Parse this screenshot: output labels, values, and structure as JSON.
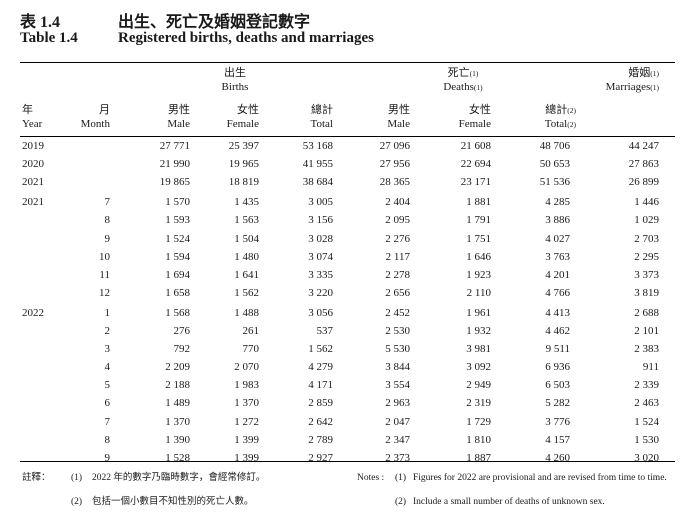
{
  "title": {
    "zh_number": "表 1.4",
    "zh_text": "出生、死亡及婚姻登記數字",
    "en_number": "Table 1.4",
    "en_text": "Registered births, deaths and marriages"
  },
  "groups": {
    "births_zh": "出生",
    "births_en": "Births",
    "deaths_zh": "死亡",
    "deaths_en": "Deaths",
    "deaths_note": "(1)",
    "marriages_zh": "婚姻",
    "marriages_en": "Marriages",
    "marriages_note": "(1)"
  },
  "columns": {
    "year_zh": "年",
    "year_en": "Year",
    "month_zh": "月",
    "month_en": "Month",
    "male_zh": "男性",
    "male_en": "Male",
    "female_zh": "女性",
    "female_en": "Female",
    "total_zh": "總計",
    "total_en": "Total",
    "total_note": "(2)"
  },
  "rows": [
    {
      "year": "2019",
      "month": "",
      "b_male": "27 771",
      "b_female": "25 397",
      "b_total": "53 168",
      "d_male": "27 096",
      "d_female": "21 608",
      "d_total": "48 706",
      "marriages": "44 247"
    },
    {
      "year": "2020",
      "month": "",
      "b_male": "21 990",
      "b_female": "19 965",
      "b_total": "41 955",
      "d_male": "27 956",
      "d_female": "22 694",
      "d_total": "50 653",
      "marriages": "27 863"
    },
    {
      "year": "2021",
      "month": "",
      "b_male": "19 865",
      "b_female": "18 819",
      "b_total": "38 684",
      "d_male": "28 365",
      "d_female": "23 171",
      "d_total": "51 536",
      "marriages": "26 899"
    },
    {
      "year": "2021",
      "month": "7",
      "b_male": "1 570",
      "b_female": "1 435",
      "b_total": "3 005",
      "d_male": "2 404",
      "d_female": "1 881",
      "d_total": "4 285",
      "marriages": "1 446"
    },
    {
      "year": "",
      "month": "8",
      "b_male": "1 593",
      "b_female": "1 563",
      "b_total": "3 156",
      "d_male": "2 095",
      "d_female": "1 791",
      "d_total": "3 886",
      "marriages": "1 029"
    },
    {
      "year": "",
      "month": "9",
      "b_male": "1 524",
      "b_female": "1 504",
      "b_total": "3 028",
      "d_male": "2 276",
      "d_female": "1 751",
      "d_total": "4 027",
      "marriages": "2 703"
    },
    {
      "year": "",
      "month": "10",
      "b_male": "1 594",
      "b_female": "1 480",
      "b_total": "3 074",
      "d_male": "2 117",
      "d_female": "1 646",
      "d_total": "3 763",
      "marriages": "2 295"
    },
    {
      "year": "",
      "month": "11",
      "b_male": "1 694",
      "b_female": "1 641",
      "b_total": "3 335",
      "d_male": "2 278",
      "d_female": "1 923",
      "d_total": "4 201",
      "marriages": "3 373"
    },
    {
      "year": "",
      "month": "12",
      "b_male": "1 658",
      "b_female": "1 562",
      "b_total": "3 220",
      "d_male": "2 656",
      "d_female": "2 110",
      "d_total": "4 766",
      "marriages": "3 819"
    },
    {
      "year": "2022",
      "month": "1",
      "b_male": "1 568",
      "b_female": "1 488",
      "b_total": "3 056",
      "d_male": "2 452",
      "d_female": "1 961",
      "d_total": "4 413",
      "marriages": "2 688"
    },
    {
      "year": "",
      "month": "2",
      "b_male": "276",
      "b_female": "261",
      "b_total": "537",
      "d_male": "2 530",
      "d_female": "1 932",
      "d_total": "4 462",
      "marriages": "2 101"
    },
    {
      "year": "",
      "month": "3",
      "b_male": "792",
      "b_female": "770",
      "b_total": "1 562",
      "d_male": "5 530",
      "d_female": "3 981",
      "d_total": "9 511",
      "marriages": "2 383"
    },
    {
      "year": "",
      "month": "4",
      "b_male": "2 209",
      "b_female": "2 070",
      "b_total": "4 279",
      "d_male": "3 844",
      "d_female": "3 092",
      "d_total": "6 936",
      "marriages": "911"
    },
    {
      "year": "",
      "month": "5",
      "b_male": "2 188",
      "b_female": "1 983",
      "b_total": "4 171",
      "d_male": "3 554",
      "d_female": "2 949",
      "d_total": "6 503",
      "marriages": "2 339"
    },
    {
      "year": "",
      "month": "6",
      "b_male": "1 489",
      "b_female": "1 370",
      "b_total": "2 859",
      "d_male": "2 963",
      "d_female": "2 319",
      "d_total": "5 282",
      "marriages": "2 463"
    },
    {
      "year": "",
      "month": "7",
      "b_male": "1 370",
      "b_female": "1 272",
      "b_total": "2 642",
      "d_male": "2 047",
      "d_female": "1 729",
      "d_total": "3 776",
      "marriages": "1 524"
    },
    {
      "year": "",
      "month": "8",
      "b_male": "1 390",
      "b_female": "1 399",
      "b_total": "2 789",
      "d_male": "2 347",
      "d_female": "1 810",
      "d_total": "4 157",
      "marriages": "1 530"
    },
    {
      "year": "",
      "month": "9",
      "b_male": "1 528",
      "b_female": "1 399",
      "b_total": "2 927",
      "d_male": "2 373",
      "d_female": "1 887",
      "d_total": "4 260",
      "marriages": "3 020"
    }
  ],
  "notes": {
    "zh_label": "註釋：",
    "zh_1_num": "(1)",
    "zh_1": "2022 年的數字乃臨時數字，會經常修訂。",
    "zh_2_num": "(2)",
    "zh_2": "包括一個小數目不知性別的死亡人數。",
    "en_label": "Notes :",
    "en_1_num": "(1)",
    "en_1": "Figures for 2022 are provisional and are revised from time to time.",
    "en_2_num": "(2)",
    "en_2": "Include a small number of deaths of unknown sex."
  }
}
